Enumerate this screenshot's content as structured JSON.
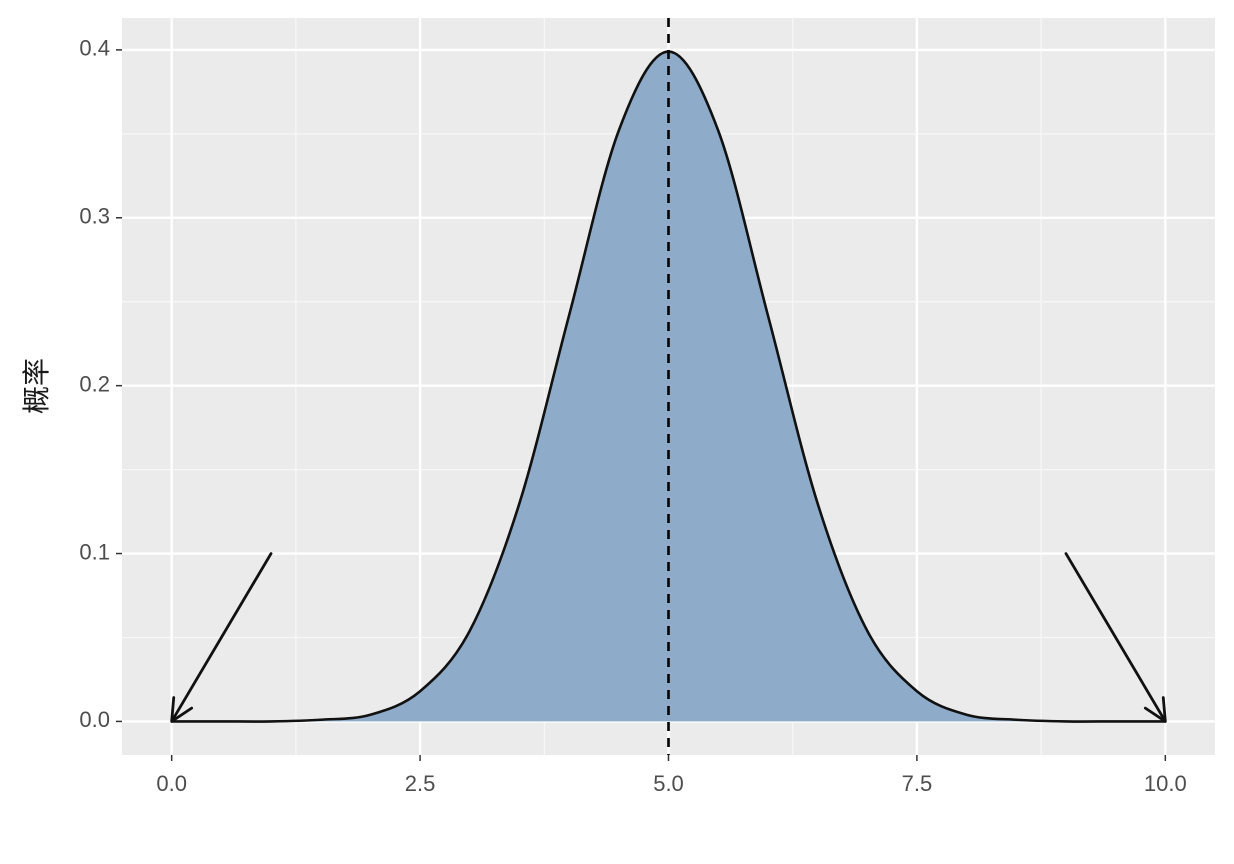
{
  "chart_data": {
    "type": "area",
    "y_label": "概率",
    "x": [
      0,
      0.5,
      1,
      1.5,
      2,
      2.5,
      3,
      3.5,
      4,
      4.5,
      5,
      5.5,
      6,
      6.5,
      7,
      7.5,
      8,
      8.5,
      9,
      9.5,
      10
    ],
    "values": [
      0,
      0,
      0,
      0.001,
      0.004,
      0.018,
      0.054,
      0.13,
      0.242,
      0.352,
      0.399,
      0.352,
      0.242,
      0.13,
      0.054,
      0.018,
      0.004,
      0.001,
      0,
      0,
      0
    ],
    "color": "#8eabc9",
    "line_color": "#111111",
    "xlim": [
      -0.5,
      10.5
    ],
    "ylim": [
      -0.02,
      0.419
    ],
    "xticks": [
      {
        "value": 0,
        "label": "0.0"
      },
      2.5,
      {
        "value": 5,
        "label": "5.0"
      },
      7.5,
      {
        "value": 10,
        "label": "10.0"
      }
    ],
    "yticks": [
      {
        "value": 0,
        "label": "0.0"
      },
      0.1,
      0.2,
      0.3,
      0.4
    ],
    "grid": true,
    "vline": 5,
    "arrows": [
      {
        "from": [
          1,
          0.1
        ],
        "to": [
          0,
          0
        ]
      },
      {
        "from": [
          9,
          0.1
        ],
        "to": [
          10,
          0
        ]
      }
    ]
  }
}
